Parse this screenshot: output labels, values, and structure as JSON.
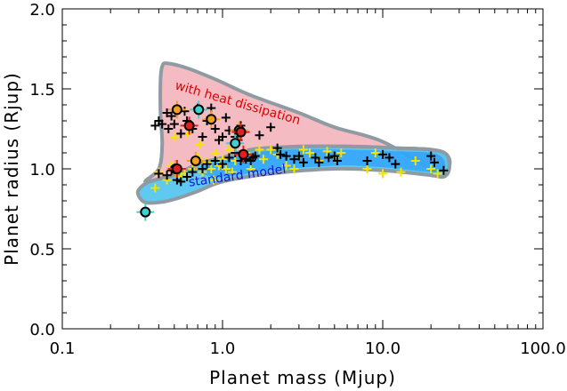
{
  "chart_data": {
    "type": "scatter",
    "xlabel": "Planet mass (Mjup)",
    "ylabel": "Planet radius (Rjup)",
    "xscale": "log",
    "xlim": [
      0.1,
      100.0
    ],
    "ylim": [
      0.0,
      2.0
    ],
    "xticks": [
      0.1,
      1.0,
      10.0,
      100.0
    ],
    "xtick_labels": [
      "0.1",
      "1.0",
      "10.0",
      "100.0"
    ],
    "yticks": [
      0.0,
      0.5,
      1.0,
      1.5,
      2.0
    ],
    "ytick_labels": [
      "0.0",
      "0.5",
      "1.0",
      "1.5",
      "2.0"
    ],
    "grid": false,
    "colors": {
      "heat_region": "#f4b4bc",
      "standard_outer": "#4fc3f0",
      "standard_inner": "#1e90ff",
      "overlap": "#7a7fc8",
      "outline": "#8e9ba3",
      "heat_label": "#e00000",
      "standard_label": "#1010e0",
      "yellow_points": "#f5e400",
      "black_points": "#000000",
      "orange_points": "#f0a020",
      "red_points": "#e02020",
      "cyan_points": "#40d0d0"
    },
    "regions": [
      {
        "label": "with heat dissipation",
        "color": "#f4b4bc",
        "outline": [
          [
            0.33,
            0.92
          ],
          [
            0.45,
            0.95
          ],
          [
            0.7,
            1.0
          ],
          [
            1.0,
            1.05
          ],
          [
            1.5,
            1.09
          ],
          [
            3.0,
            1.13
          ],
          [
            6.0,
            1.14
          ],
          [
            12.0,
            1.13
          ],
          [
            20.0,
            1.12
          ],
          [
            25.0,
            1.09
          ],
          [
            26.0,
            1.02
          ],
          [
            22.0,
            0.98
          ],
          [
            10.0,
            1.17
          ],
          [
            5.0,
            1.26
          ],
          [
            3.0,
            1.35
          ],
          [
            1.5,
            1.46
          ],
          [
            0.9,
            1.56
          ],
          [
            0.6,
            1.63
          ],
          [
            0.45,
            1.66
          ],
          [
            0.42,
            1.64
          ],
          [
            0.41,
            1.55
          ],
          [
            0.41,
            1.35
          ],
          [
            0.42,
            1.15
          ],
          [
            0.4,
            1.0
          ]
        ]
      },
      {
        "label": "standard model",
        "color": "#4fc3f0",
        "outline": [
          [
            0.3,
            0.83
          ],
          [
            0.3,
            0.87
          ],
          [
            0.35,
            0.92
          ],
          [
            0.5,
            0.96
          ],
          [
            0.7,
            1.03
          ],
          [
            1.0,
            1.07
          ],
          [
            1.5,
            1.12
          ],
          [
            3.0,
            1.14
          ],
          [
            6.0,
            1.14
          ],
          [
            12.0,
            1.13
          ],
          [
            20.0,
            1.12
          ],
          [
            25.0,
            1.09
          ],
          [
            26.0,
            1.0
          ],
          [
            24.0,
            0.95
          ],
          [
            20.0,
            0.96
          ],
          [
            10.0,
            0.99
          ],
          [
            5.0,
            1.0
          ],
          [
            2.0,
            0.97
          ],
          [
            1.0,
            0.92
          ],
          [
            0.7,
            0.86
          ],
          [
            0.5,
            0.81
          ],
          [
            0.4,
            0.79
          ],
          [
            0.33,
            0.79
          ]
        ]
      },
      {
        "label": "",
        "color": "#1e90ff",
        "outline": [
          [
            0.7,
            0.99
          ],
          [
            1.0,
            1.05
          ],
          [
            1.5,
            1.1
          ],
          [
            3.0,
            1.12
          ],
          [
            6.0,
            1.12
          ],
          [
            12.0,
            1.11
          ],
          [
            20.0,
            1.1
          ],
          [
            24.0,
            1.06
          ],
          [
            24.0,
            0.99
          ],
          [
            20.0,
            0.98
          ],
          [
            10.0,
            1.01
          ],
          [
            5.0,
            1.02
          ],
          [
            2.0,
            0.99
          ],
          [
            1.2,
            0.96
          ],
          [
            0.9,
            0.95
          ]
        ]
      }
    ],
    "region_labels": [
      {
        "text": "with heat dissipation",
        "x": 0.5,
        "y": 1.5,
        "color": "#e00000"
      },
      {
        "text": "standard model",
        "x": 0.62,
        "y": 0.89,
        "color": "#1010e0"
      }
    ],
    "series": [
      {
        "marker": "plus",
        "color": "#f5e400",
        "points": [
          [
            0.4,
            0.98
          ],
          [
            0.45,
            0.93
          ],
          [
            0.5,
            1.2
          ],
          [
            0.55,
            0.95
          ],
          [
            0.6,
            1.22
          ],
          [
            0.65,
            1.0
          ],
          [
            0.7,
            1.07
          ],
          [
            0.75,
            0.98
          ],
          [
            0.8,
            1.04
          ],
          [
            0.85,
            1.0
          ],
          [
            0.9,
            1.1
          ],
          [
            0.95,
            1.02
          ],
          [
            1.0,
            1.06
          ],
          [
            1.05,
            1.0
          ],
          [
            1.1,
            1.12
          ],
          [
            1.2,
            1.05
          ],
          [
            1.3,
            1.09
          ],
          [
            1.4,
            1.1
          ],
          [
            1.5,
            1.0
          ],
          [
            1.6,
            1.08
          ],
          [
            1.8,
            1.06
          ],
          [
            2.0,
            1.12
          ],
          [
            2.2,
            1.09
          ],
          [
            2.5,
            1.02
          ],
          [
            3.0,
            1.08
          ],
          [
            3.5,
            1.1
          ],
          [
            4.0,
            1.05
          ],
          [
            4.5,
            1.11
          ],
          [
            5.0,
            1.07
          ],
          [
            5.5,
            1.1
          ],
          [
            8.0,
            1.0
          ],
          [
            9.0,
            1.1
          ],
          [
            10.0,
            0.97
          ],
          [
            13.0,
            0.98
          ],
          [
            16.0,
            1.05
          ],
          [
            20.0,
            1.0
          ],
          [
            22.0,
            0.97
          ],
          [
            0.38,
            0.88
          ],
          [
            0.48,
            1.02
          ],
          [
            0.58,
            0.97
          ],
          [
            0.72,
            1.15
          ],
          [
            0.88,
            0.93
          ],
          [
            1.15,
            0.98
          ],
          [
            1.7,
            1.12
          ],
          [
            2.8,
            1.0
          ],
          [
            3.2,
            1.12
          ]
        ]
      },
      {
        "marker": "plus",
        "color": "#000000",
        "points": [
          [
            0.38,
            1.27
          ],
          [
            0.4,
            1.3
          ],
          [
            0.42,
            1.28
          ],
          [
            0.45,
            1.35
          ],
          [
            0.46,
            1.25
          ],
          [
            0.48,
            1.33
          ],
          [
            0.5,
            1.28
          ],
          [
            0.55,
            1.22
          ],
          [
            0.58,
            1.36
          ],
          [
            0.6,
            1.3
          ],
          [
            0.65,
            1.25
          ],
          [
            0.7,
            1.38
          ],
          [
            0.75,
            1.2
          ],
          [
            0.8,
            1.3
          ],
          [
            0.85,
            1.38
          ],
          [
            0.9,
            1.25
          ],
          [
            0.95,
            1.18
          ],
          [
            1.0,
            1.2
          ],
          [
            1.05,
            1.32
          ],
          [
            1.1,
            1.24
          ],
          [
            1.2,
            1.2
          ],
          [
            1.25,
            1.18
          ],
          [
            1.3,
            1.27
          ],
          [
            1.5,
            1.05
          ],
          [
            1.55,
            1.07
          ],
          [
            1.6,
            1.08
          ],
          [
            1.7,
            1.21
          ],
          [
            2.0,
            1.26
          ],
          [
            2.2,
            1.13
          ],
          [
            2.3,
            1.09
          ],
          [
            2.5,
            1.08
          ],
          [
            2.8,
            1.06
          ],
          [
            3.0,
            1.08
          ],
          [
            3.2,
            1.04
          ],
          [
            3.8,
            1.07
          ],
          [
            4.0,
            1.04
          ],
          [
            4.6,
            1.07
          ],
          [
            5.0,
            1.08
          ],
          [
            5.2,
            1.05
          ],
          [
            8.0,
            1.05
          ],
          [
            10.0,
            1.09
          ],
          [
            11.0,
            1.07
          ],
          [
            12.0,
            1.03
          ],
          [
            20.0,
            1.08
          ],
          [
            21.0,
            1.04
          ],
          [
            24.0,
            0.99
          ],
          [
            0.4,
            0.97
          ],
          [
            0.45,
            0.96
          ],
          [
            0.48,
            0.99
          ],
          [
            0.5,
            1.0
          ],
          [
            0.52,
            0.93
          ],
          [
            0.55,
            0.92
          ],
          [
            0.6,
            0.95
          ],
          [
            0.65,
            0.98
          ],
          [
            0.7,
            1.05
          ],
          [
            0.75,
            1.0
          ],
          [
            0.8,
            1.03
          ],
          [
            0.9,
            1.05
          ],
          [
            1.0,
            1.03
          ],
          [
            1.1,
            1.07
          ],
          [
            1.2,
            1.1
          ],
          [
            1.3,
            1.05
          ],
          [
            1.4,
            1.06
          ]
        ]
      },
      {
        "marker": "circle",
        "color": "#f0a020",
        "points": [
          [
            0.52,
            1.37
          ],
          [
            0.68,
            1.05
          ],
          [
            0.85,
            1.31
          ],
          [
            1.27,
            1.24
          ],
          [
            0.51,
            1.0
          ]
        ]
      },
      {
        "marker": "circle",
        "color": "#e02020",
        "points": [
          [
            0.62,
            1.27
          ],
          [
            1.35,
            1.09
          ],
          [
            0.52,
            1.0
          ],
          [
            1.3,
            1.23
          ]
        ]
      },
      {
        "marker": "circle",
        "color": "#40d0d0",
        "points": [
          [
            0.33,
            0.73
          ],
          [
            0.71,
            1.37
          ],
          [
            1.2,
            1.16
          ]
        ]
      }
    ]
  }
}
